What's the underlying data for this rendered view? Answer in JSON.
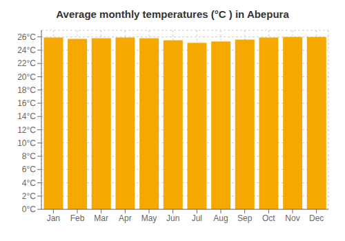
{
  "chart_data": {
    "type": "bar",
    "title": "Average monthly temperatures (°C ) in Abepura",
    "categories": [
      "Jan",
      "Feb",
      "Mar",
      "Apr",
      "May",
      "Jun",
      "Jul",
      "Aug",
      "Sep",
      "Oct",
      "Nov",
      "Dec"
    ],
    "values": [
      25.9,
      25.7,
      25.8,
      25.9,
      25.8,
      25.5,
      25.1,
      25.3,
      25.6,
      25.9,
      26.0,
      26.0
    ],
    "color": "#F5A800",
    "ylim": [
      0,
      27
    ],
    "yticks": [
      {
        "value": 0,
        "label": "0°C"
      },
      {
        "value": 2,
        "label": "2°C"
      },
      {
        "value": 4,
        "label": "4°C"
      },
      {
        "value": 6,
        "label": "6°C"
      },
      {
        "value": 8,
        "label": "8°C"
      },
      {
        "value": 10,
        "label": "10°C"
      },
      {
        "value": 12,
        "label": "12°C"
      },
      {
        "value": 14,
        "label": "14°C"
      },
      {
        "value": 16,
        "label": "16°C"
      },
      {
        "value": 18,
        "label": "18°C"
      },
      {
        "value": 20,
        "label": "20°C"
      },
      {
        "value": 22,
        "label": "22°C"
      },
      {
        "value": 24,
        "label": "24°C"
      },
      {
        "value": 26,
        "label": "26°C"
      }
    ],
    "grid": true
  }
}
